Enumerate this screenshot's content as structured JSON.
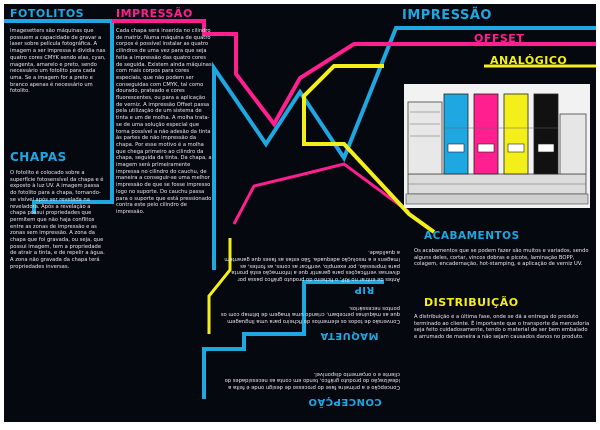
{
  "colors": {
    "cyan": "#1ea7e1",
    "magenta": "#ff1f8e",
    "yellow": "#f4ee1a"
  },
  "fotolitos": {
    "title": "FOTOLITOS",
    "text": "Imagesetters são máquinas que possuem a capacidade de gravar a laser sobre película fotográfica. A imagem a ser impressa é dividia nas quatro cores CMYK sendo elas, cyan, magenta, amarelo e preto, sendo necessário um fotolito para cada uma. Se a imagem for a preto e branco apenas é necessário um fotolito."
  },
  "chapas": {
    "title": "CHAPAS",
    "text": "O fotolito é colocado sobre a superfície fotosensível da chapa e é exposto à luz UV. A imagem passa do fotolito para a chapa, tornando-se visível após ser revelada na reveladora. Após a revelação a chapa possui propriedades que permitem que não haja conflitos entre as zonas de impressão e as zonas sem impressão. A zona da chapa que foi gravada, ou seja, que possui imagem, tem a propriedade de atrair a tinta, e de repelir a água. A zona não gravada da chapa terá propriedades inversas."
  },
  "impressao": {
    "title": "IMPRESSÃO",
    "text": "Cada chapa será inserida no cilindro de matriz. Numa máquina de quatro corpos é possível instalar as quatro cilindros de uma vez para que seja feita a impressão das quatro cores de seguida. Existem ainda máquinas com mais corpos para cores especiais, que não podem ser conseguidas com CMYK, tal como dourado, prateado e cores fluorescentes, ou para a aplicação de verniz. A impressão Offset passa pela utilização de um sistema de tinta e um de molha. A molha trata-se de uma solução especial que torna possível a não adesão da tinta às partes de não impressão da chapa. Por esse motivo é a molha que chega primeiro ao cilindro da chapa, seguida da tinta. Da chapa, a imagem será primeiramente impressa no cilindro do cauchu, de maneira a conseguir-se uma melhor impressão de que se fosse impresso logo no suporte. Do cauchu passa para o suporte que está pressionado contra este pelo cilindro de impressão."
  },
  "inverted": {
    "upper_text": "Antes de entrar no RIP, o ficheiro do produto gráfico passa por diversas verificações para garantir que a informação está pronta para impressão, por exemplo, verificar as cores, as fontes, as imagens e a resolução adequada. São estas as fases que garantem a qualidade.",
    "rip_title": "RIP",
    "rip_text": "Conversão de todos os elementos do ficheiro para uma linguagem que as máquinas percebam, criando uma imagem de bitmap com os pontos necessários.",
    "maquete_title": "MAQUETA",
    "concepcao_text": "Concepção é a primeira fase do processo de design onde é feita a idealização do produto gráfico, tendo em conta as necessidades do cliente e o orçamento disponível.",
    "concepcao_title": "CONCEPÇÃO"
  },
  "headings": {
    "impressao": "IMPRESSÃO",
    "offset": "OFFSET",
    "analogico": "ANALÓGICO"
  },
  "acabamentos": {
    "title": "ACABAMENTOS",
    "text": "Os acabamentos que se podem fazer são muitos e variados, sendo alguns deles, cortar, vincos dobras e picote, laminação BOPP, colagem, encadernação, hot-stamping, e aplicação de verniz UV."
  },
  "distribuicao": {
    "title": "DISTRIBUIÇÃO",
    "text": "A distribuição é a última fase, onde se dá a entrega do produto terminado ao cliente. É importante que o transporte da mercadoria seja feito cuidadosamente, tendo o material de ser bem embalado e arrumado de maneira a não sejam causados danos no produto."
  }
}
